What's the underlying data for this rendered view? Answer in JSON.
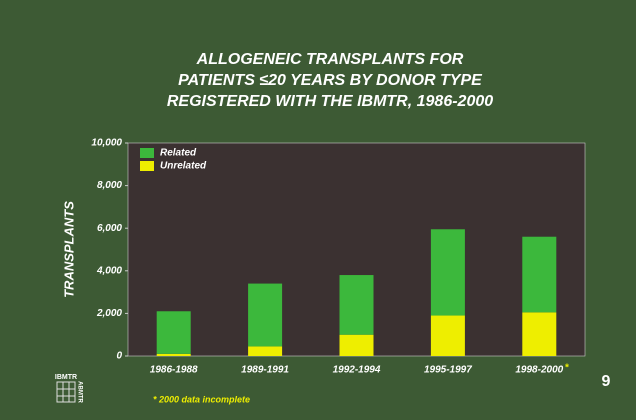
{
  "chart_data": {
    "type": "stacked_bar",
    "title": [
      "ALLOGENEIC TRANSPLANTS FOR",
      "PATIENTS ≤20 YEARS BY DONOR TYPE",
      "REGISTERED WITH THE IBMTR, 1986-2000"
    ],
    "y_label": "TRANSPLANTS",
    "categories": [
      "1986-1988",
      "1989-1991",
      "1992-1994",
      "1995-1997",
      "1998-2000"
    ],
    "footnote_marker": "*",
    "footnote": "* 2000 data incomplete",
    "series": [
      {
        "name": "Related",
        "color": "#3cb83c",
        "values": [
          2000,
          2950,
          2800,
          4050,
          3550
        ]
      },
      {
        "name": "Unrelated",
        "color": "#eeee00",
        "values": [
          100,
          450,
          1000,
          1900,
          2050
        ]
      }
    ],
    "ylim": [
      0,
      10000
    ],
    "yticks": [
      0,
      {
        "value": 2000,
        "label": "2,000"
      },
      {
        "value": 4000,
        "label": "4,000"
      },
      {
        "value": 6000,
        "label": "6,000"
      },
      {
        "value": 8000,
        "label": "8,000"
      },
      {
        "value": 10000,
        "label": "10,000"
      }
    ],
    "legend": "top-left",
    "plot_color": "#3b3131"
  },
  "page_number": "9",
  "logo": [
    "IBMTR",
    "ABMTR"
  ]
}
